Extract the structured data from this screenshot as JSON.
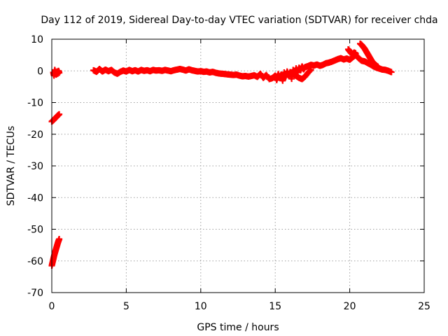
{
  "chart_data": {
    "type": "scatter",
    "title": "Day 112 of 2019, Sidereal Day-to-day VTEC variation (SDTVAR) for receiver chda",
    "xlabel": "GPS time / hours",
    "ylabel": "SDTVAR / TECUs",
    "xlim": [
      0,
      25
    ],
    "ylim": [
      -70,
      10
    ],
    "xticks": [
      0,
      5,
      10,
      15,
      20,
      25
    ],
    "yticks": [
      10,
      0,
      -10,
      -20,
      -30,
      -40,
      -50,
      -60,
      -70
    ],
    "xtick_labels": [
      "0",
      "5",
      "10",
      "15",
      "20",
      "25"
    ],
    "ytick_labels": [
      "10",
      "0",
      "-10",
      "-20",
      "-30",
      "-40",
      "-50",
      "-60",
      "-70"
    ],
    "grid": true,
    "marker": "+",
    "color": "#ff0000",
    "series": [
      {
        "name": "SDTVAR",
        "segments": [
          [
            [
              0.1,
              -0.5
            ],
            [
              0.15,
              -1.5
            ],
            [
              0.2,
              0.3
            ],
            [
              0.25,
              -0.8
            ],
            [
              0.3,
              -1.2
            ],
            [
              0.35,
              -0.2
            ],
            [
              0.4,
              -0.9
            ],
            [
              0.45,
              0.0
            ],
            [
              0.5,
              -0.6
            ]
          ],
          [
            [
              0.0,
              -16.0
            ],
            [
              0.1,
              -15.6
            ],
            [
              0.2,
              -15.1
            ],
            [
              0.3,
              -14.6
            ],
            [
              0.4,
              -14.1
            ],
            [
              0.5,
              -13.7
            ]
          ],
          [
            [
              0.0,
              -61.5
            ],
            [
              0.05,
              -60.5
            ],
            [
              0.1,
              -59.5
            ],
            [
              0.15,
              -58.5
            ],
            [
              0.2,
              -57.6
            ],
            [
              0.25,
              -56.8
            ],
            [
              0.3,
              -56.0
            ],
            [
              0.35,
              -55.2
            ],
            [
              0.4,
              -54.4
            ],
            [
              0.45,
              -53.7
            ],
            [
              0.5,
              -53.1
            ]
          ],
          [
            [
              2.8,
              0.2
            ],
            [
              3.0,
              -0.3
            ],
            [
              3.2,
              0.6
            ],
            [
              3.4,
              -0.2
            ],
            [
              3.6,
              0.4
            ],
            [
              3.8,
              -0.1
            ],
            [
              4.0,
              0.3
            ],
            [
              4.2,
              -0.5
            ],
            [
              4.4,
              -0.9
            ],
            [
              4.6,
              -0.3
            ],
            [
              4.8,
              0.1
            ],
            [
              5.0,
              -0.2
            ],
            [
              5.2,
              0.3
            ],
            [
              5.4,
              -0.1
            ],
            [
              5.6,
              0.2
            ],
            [
              5.8,
              -0.2
            ],
            [
              6.0,
              0.3
            ],
            [
              6.2,
              0.0
            ],
            [
              6.4,
              0.2
            ],
            [
              6.6,
              -0.1
            ],
            [
              6.8,
              0.3
            ],
            [
              7.0,
              0.1
            ],
            [
              7.2,
              0.2
            ],
            [
              7.4,
              0.0
            ],
            [
              7.6,
              0.3
            ],
            [
              7.8,
              0.1
            ],
            [
              8.0,
              -0.1
            ],
            [
              8.2,
              0.2
            ],
            [
              8.4,
              0.4
            ],
            [
              8.6,
              0.6
            ],
            [
              8.8,
              0.4
            ],
            [
              9.0,
              0.1
            ],
            [
              9.2,
              0.5
            ],
            [
              9.4,
              0.2
            ],
            [
              9.6,
              0.0
            ],
            [
              9.8,
              -0.2
            ],
            [
              10.0,
              -0.1
            ],
            [
              10.2,
              -0.3
            ],
            [
              10.4,
              -0.2
            ],
            [
              10.6,
              -0.5
            ],
            [
              10.8,
              -0.3
            ],
            [
              11.0,
              -0.6
            ],
            [
              11.2,
              -0.8
            ],
            [
              11.4,
              -0.9
            ],
            [
              11.6,
              -1.0
            ],
            [
              11.8,
              -1.1
            ],
            [
              12.0,
              -1.2
            ],
            [
              12.2,
              -1.3
            ],
            [
              12.4,
              -1.2
            ],
            [
              12.6,
              -1.5
            ],
            [
              12.8,
              -1.7
            ],
            [
              13.0,
              -1.6
            ],
            [
              13.2,
              -1.8
            ],
            [
              13.4,
              -1.6
            ],
            [
              13.6,
              -1.4
            ],
            [
              13.8,
              -1.9
            ],
            [
              14.0,
              -0.9
            ],
            [
              14.2,
              -2.2
            ],
            [
              14.4,
              -1.3
            ],
            [
              14.6,
              -2.6
            ],
            [
              14.8,
              -2.3
            ],
            [
              15.0,
              -1.5
            ],
            [
              15.1,
              -2.9
            ],
            [
              15.2,
              -1.0
            ],
            [
              15.3,
              -2.2
            ],
            [
              15.4,
              -1.2
            ],
            [
              15.5,
              -3.1
            ],
            [
              15.6,
              -0.5
            ],
            [
              15.7,
              -2.0
            ],
            [
              15.8,
              -0.2
            ],
            [
              15.9,
              -1.5
            ],
            [
              16.0,
              -0.4
            ],
            [
              16.1,
              -2.5
            ],
            [
              16.2,
              0.3
            ],
            [
              16.3,
              -1.2
            ],
            [
              16.4,
              0.8
            ],
            [
              16.5,
              -0.5
            ],
            [
              16.6,
              1.0
            ],
            [
              16.7,
              0.2
            ],
            [
              16.8,
              1.4
            ],
            [
              16.9,
              0.5
            ],
            [
              17.0,
              1.2
            ],
            [
              17.2,
              1.5
            ],
            [
              17.4,
              1.9
            ],
            [
              17.6,
              1.7
            ],
            [
              17.8,
              2.0
            ],
            [
              18.0,
              1.6
            ],
            [
              18.2,
              1.9
            ],
            [
              18.4,
              2.4
            ],
            [
              18.6,
              2.6
            ],
            [
              18.8,
              2.9
            ],
            [
              19.0,
              3.3
            ],
            [
              19.2,
              3.7
            ],
            [
              19.4,
              4.0
            ],
            [
              19.6,
              3.6
            ],
            [
              19.8,
              3.9
            ],
            [
              20.0,
              3.5
            ],
            [
              20.2,
              4.3
            ],
            [
              20.4,
              5.0
            ],
            [
              20.6,
              4.0
            ],
            [
              20.8,
              3.2
            ],
            [
              21.0,
              3.0
            ],
            [
              21.2,
              2.5
            ],
            [
              21.4,
              2.0
            ],
            [
              21.6,
              1.4
            ],
            [
              21.8,
              1.0
            ],
            [
              22.0,
              0.7
            ],
            [
              22.2,
              0.4
            ],
            [
              22.4,
              0.3
            ],
            [
              22.6,
              0.0
            ],
            [
              22.8,
              -0.4
            ]
          ],
          [
            [
              19.9,
              6.8
            ],
            [
              20.0,
              6.2
            ],
            [
              20.1,
              5.6
            ],
            [
              20.2,
              5.2
            ],
            [
              20.3,
              5.8
            ],
            [
              20.4,
              5.5
            ]
          ],
          [
            [
              20.7,
              8.6
            ],
            [
              20.8,
              8.2
            ],
            [
              20.9,
              7.6
            ],
            [
              21.0,
              7.0
            ],
            [
              21.1,
              6.2
            ],
            [
              21.2,
              5.4
            ],
            [
              21.3,
              4.6
            ],
            [
              21.4,
              3.8
            ],
            [
              21.5,
              3.0
            ],
            [
              21.6,
              2.5
            ],
            [
              21.7,
              2.0
            ],
            [
              21.8,
              1.6
            ],
            [
              21.9,
              1.3
            ]
          ],
          [
            [
              16.2,
              -1.0
            ],
            [
              16.4,
              -1.6
            ],
            [
              16.6,
              -2.2
            ],
            [
              16.8,
              -2.6
            ],
            [
              17.0,
              -1.8
            ],
            [
              17.2,
              -0.6
            ],
            [
              17.4,
              0.4
            ]
          ]
        ]
      }
    ]
  }
}
